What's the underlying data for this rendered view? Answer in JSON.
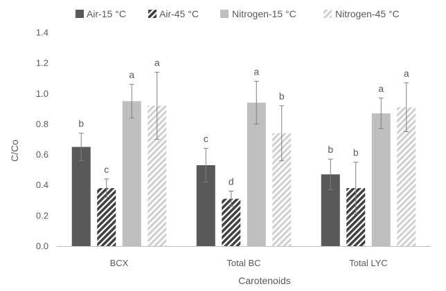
{
  "chart_data": {
    "type": "bar",
    "title": "",
    "xlabel": "Carotenoids",
    "ylabel": "C/Co",
    "ylim": [
      0,
      1.4
    ],
    "yticks": [
      0.0,
      0.2,
      0.4,
      0.6,
      0.8,
      1.0,
      1.2,
      1.4
    ],
    "ytick_labels": [
      "0.0",
      "0.2",
      "0.4",
      "0.6",
      "0.8",
      "1.0",
      "1.2",
      "1.4"
    ],
    "grid": false,
    "legend_position": "top",
    "categories": [
      "BCX",
      "Total BC",
      "Total LYC"
    ],
    "series": [
      {
        "name": "Air-15 °C",
        "color": "#595959",
        "pattern": "solid",
        "values": [
          0.65,
          0.53,
          0.47
        ],
        "errors": [
          0.09,
          0.11,
          0.1
        ],
        "labels": [
          "b",
          "c",
          "b"
        ]
      },
      {
        "name": "Air-45 °C",
        "color": "#404040",
        "pattern": "dark-hatch",
        "values": [
          0.38,
          0.31,
          0.38
        ],
        "errors": [
          0.06,
          0.05,
          0.17
        ],
        "labels": [
          "c",
          "d",
          "b"
        ]
      },
      {
        "name": "Nitrogen-15 °C",
        "color": "#bfbfbf",
        "pattern": "solid",
        "values": [
          0.95,
          0.94,
          0.87
        ],
        "errors": [
          0.11,
          0.14,
          0.1
        ],
        "labels": [
          "a",
          "a",
          "a"
        ]
      },
      {
        "name": "Nitrogen-45 °C",
        "color": "#d0d0d0",
        "pattern": "light-hatch",
        "values": [
          0.92,
          0.74,
          0.91
        ],
        "errors": [
          0.22,
          0.18,
          0.16
        ],
        "labels": [
          "a",
          "b",
          "a"
        ]
      }
    ]
  }
}
